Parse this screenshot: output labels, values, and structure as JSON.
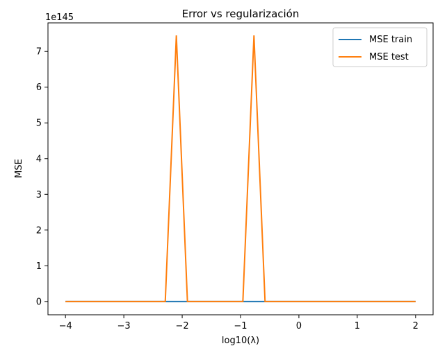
{
  "chart_data": {
    "type": "line",
    "title": "Error vs regularización",
    "xlabel": "log10(λ)",
    "ylabel": "MSE",
    "y_offset_label": "1e145",
    "xlim": [
      -4.3,
      2.3
    ],
    "ylim": [
      -0.372,
      7.8
    ],
    "x_ticks": [
      -4,
      -3,
      -2,
      -1,
      0,
      1,
      2
    ],
    "x_tick_labels": [
      "−4",
      "−3",
      "−2",
      "−1",
      "0",
      "1",
      "2"
    ],
    "y_ticks": [
      0,
      1,
      2,
      3,
      4,
      5,
      6,
      7
    ],
    "y_tick_labels": [
      "0",
      "1",
      "2",
      "3",
      "4",
      "5",
      "6",
      "7"
    ],
    "grid": false,
    "legend_position": "top-right",
    "x": [
      -4.0,
      -3.81,
      -3.62,
      -3.43,
      -3.24,
      -3.05,
      -2.86,
      -2.67,
      -2.48,
      -2.29,
      -2.1,
      -1.91,
      -1.72,
      -1.53,
      -1.34,
      -1.15,
      -0.96,
      -0.77,
      -0.58,
      -0.39,
      -0.2,
      -0.01,
      0.18,
      0.37,
      0.56,
      0.75,
      0.94,
      1.13,
      1.32,
      1.51,
      1.7,
      1.89,
      2.0
    ],
    "series": [
      {
        "name": "MSE train",
        "color": "#1f77b4",
        "values": [
          0,
          0,
          0,
          0,
          0,
          0,
          0,
          0,
          0,
          0,
          0,
          0,
          0,
          0,
          0,
          0,
          0,
          0,
          0,
          0,
          0,
          0,
          0,
          0,
          0,
          0,
          0,
          0,
          0,
          0,
          0,
          0,
          0
        ]
      },
      {
        "name": "MSE test",
        "color": "#ff7f0e",
        "values": [
          0,
          0,
          0,
          0,
          0,
          0,
          0,
          0,
          0,
          0,
          7.45,
          0,
          0,
          0,
          0,
          0,
          0,
          7.45,
          0,
          0,
          0,
          0,
          0,
          0,
          0,
          0,
          0,
          0,
          0,
          0,
          0,
          0,
          0
        ]
      }
    ]
  }
}
